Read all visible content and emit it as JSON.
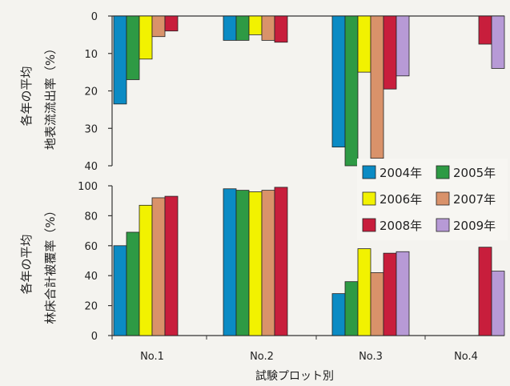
{
  "chart_data": [
    {
      "type": "bar",
      "orientation": "inverted",
      "ylabel_line1": "各年の平均",
      "ylabel_line2": "地表流流出率（%）",
      "yticks": [
        "0",
        "10",
        "20",
        "30",
        "40"
      ],
      "ylim": [
        0,
        40
      ],
      "categories": [
        "No.1",
        "No.2",
        "No.3",
        "No.4"
      ],
      "series": [
        {
          "name": "2004年",
          "color": "#0b8bc4",
          "values": [
            23.5,
            6.5,
            35,
            null
          ]
        },
        {
          "name": "2005年",
          "color": "#2e9a44",
          "values": [
            17,
            6.5,
            40,
            null
          ]
        },
        {
          "name": "2006年",
          "color": "#f2f200",
          "values": [
            11.5,
            5,
            15,
            null
          ]
        },
        {
          "name": "2007年",
          "color": "#d9926a",
          "values": [
            5.5,
            6.5,
            38,
            null
          ]
        },
        {
          "name": "2008年",
          "color": "#c81e3c",
          "values": [
            4,
            7,
            19.5,
            7.5
          ]
        },
        {
          "name": "2009年",
          "color": "#b79ad6",
          "values": [
            null,
            null,
            16,
            14
          ]
        }
      ]
    },
    {
      "type": "bar",
      "ylabel_line1": "各年の平均",
      "ylabel_line2": "林床合計被覆率（%）",
      "yticks": [
        "0",
        "20",
        "40",
        "60",
        "80",
        "100"
      ],
      "ylim": [
        0,
        100
      ],
      "xlabel": "試験プロット別",
      "categories": [
        "No.1",
        "No.2",
        "No.3",
        "No.4"
      ],
      "series": [
        {
          "name": "2004年",
          "color": "#0b8bc4",
          "values": [
            60,
            98,
            28,
            null
          ]
        },
        {
          "name": "2005年",
          "color": "#2e9a44",
          "values": [
            69,
            97,
            36,
            null
          ]
        },
        {
          "name": "2006年",
          "color": "#f2f200",
          "values": [
            87,
            96,
            58,
            null
          ]
        },
        {
          "name": "2007年",
          "color": "#d9926a",
          "values": [
            92,
            97,
            42,
            null
          ]
        },
        {
          "name": "2008年",
          "color": "#c81e3c",
          "values": [
            93,
            99,
            55,
            59
          ]
        },
        {
          "name": "2009年",
          "color": "#b79ad6",
          "values": [
            null,
            null,
            56,
            43
          ]
        }
      ]
    }
  ],
  "legend": [
    {
      "label": "2004年",
      "color": "#0b8bc4"
    },
    {
      "label": "2005年",
      "color": "#2e9a44"
    },
    {
      "label": "2006年",
      "color": "#f2f200"
    },
    {
      "label": "2007年",
      "color": "#d9926a"
    },
    {
      "label": "2008年",
      "color": "#c81e3c"
    },
    {
      "label": "2009年",
      "color": "#b79ad6"
    }
  ]
}
